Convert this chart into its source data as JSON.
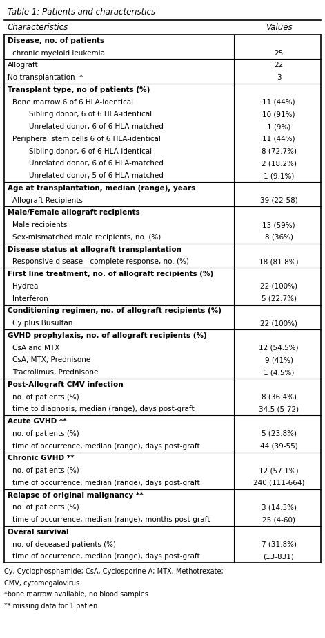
{
  "title": "Table 1: Patients and characteristics",
  "col1_header": "Characteristics",
  "col2_header": "Values",
  "rows": [
    {
      "text": "Disease, no. of patients",
      "value": "",
      "bold": true,
      "indent": 0,
      "section_start": true
    },
    {
      "text": "chronic myeloid leukemia",
      "value": "25",
      "bold": false,
      "indent": 1,
      "section_start": false
    },
    {
      "text": "Allograft",
      "value": "22",
      "bold": false,
      "indent": 0,
      "section_start": true
    },
    {
      "text": "No transplantation  *",
      "value": "3",
      "bold": false,
      "indent": 0,
      "section_start": false
    },
    {
      "text": "Transplant type, no of patients (%)",
      "value": "",
      "bold": true,
      "indent": 0,
      "section_start": true
    },
    {
      "text": "Bone marrow 6 of 6 HLA-identical",
      "value": "11 (44%)",
      "bold": false,
      "indent": 1,
      "section_start": false
    },
    {
      "text": "    Sibling donor, 6 of 6 HLA-identical",
      "value": "10 (91%)",
      "bold": false,
      "indent": 2,
      "section_start": false
    },
    {
      "text": "    Unrelated donor, 6 of 6 HLA-matched",
      "value": "1 (9%)",
      "bold": false,
      "indent": 2,
      "section_start": false
    },
    {
      "text": "Peripheral stem cells 6 of 6 HLA-identical",
      "value": "11 (44%)",
      "bold": false,
      "indent": 1,
      "section_start": false
    },
    {
      "text": "    Sibling donor, 6 of 6 HLA-identical",
      "value": "8 (72.7%)",
      "bold": false,
      "indent": 2,
      "section_start": false
    },
    {
      "text": "    Unrelated donor, 6 of 6 HLA-matched",
      "value": "2 (18.2%)",
      "bold": false,
      "indent": 2,
      "section_start": false
    },
    {
      "text": "    Unrelated donor, 5 of 6 HLA-matched",
      "value": "1 (9.1%)",
      "bold": false,
      "indent": 2,
      "section_start": false
    },
    {
      "text": "Age at transplantation, median (range), years",
      "value": "",
      "bold": true,
      "indent": 0,
      "section_start": true
    },
    {
      "text": "Allograft Recipients",
      "value": "39 (22-58)",
      "bold": false,
      "indent": 1,
      "section_start": false
    },
    {
      "text": "Male/Female allograft recipients",
      "value": "",
      "bold": true,
      "indent": 0,
      "section_start": true
    },
    {
      "text": "Male recipients",
      "value": "13 (59%)",
      "bold": false,
      "indent": 1,
      "section_start": false
    },
    {
      "text": "Sex-mismatched male recipients, no. (%)",
      "value": "8 (36%)",
      "bold": false,
      "indent": 1,
      "section_start": false
    },
    {
      "text": "Disease status at allograft transplantation",
      "value": "",
      "bold": true,
      "indent": 0,
      "section_start": true
    },
    {
      "text": "Responsive disease - complete response, no. (%)",
      "value": "18 (81.8%)",
      "bold": false,
      "indent": 1,
      "section_start": false
    },
    {
      "text": "First line treatment, no. of allograft recipients (%)",
      "value": "",
      "bold": true,
      "indent": 0,
      "section_start": true
    },
    {
      "text": "Hydrea",
      "value": "22 (100%)",
      "bold": false,
      "indent": 1,
      "section_start": false
    },
    {
      "text": "Interferon",
      "value": "5 (22.7%)",
      "bold": false,
      "indent": 1,
      "section_start": false
    },
    {
      "text": "Conditioning regimen, no. of allograft recipients (%)",
      "value": "",
      "bold": true,
      "indent": 0,
      "section_start": true
    },
    {
      "text": "Cy plus Busulfan",
      "value": "22 (100%)",
      "bold": false,
      "indent": 1,
      "section_start": false
    },
    {
      "text": "GVHD prophylaxis, no. of allograft recipients (%)",
      "value": "",
      "bold": true,
      "indent": 0,
      "section_start": true
    },
    {
      "text": "CsA and MTX",
      "value": "12 (54.5%)",
      "bold": false,
      "indent": 1,
      "section_start": false
    },
    {
      "text": "CsA, MTX, Prednisone",
      "value": "9 (41%)",
      "bold": false,
      "indent": 1,
      "section_start": false
    },
    {
      "text": "Tracrolimus, Prednisone",
      "value": "1 (4.5%)",
      "bold": false,
      "indent": 1,
      "section_start": false
    },
    {
      "text": "Post-Allograft CMV infection",
      "value": "",
      "bold": true,
      "indent": 0,
      "section_start": true
    },
    {
      "text": "no. of patients (%)",
      "value": "8 (36.4%)",
      "bold": false,
      "indent": 1,
      "section_start": false
    },
    {
      "text": "time to diagnosis, median (range), days post-graft",
      "value": "34.5 (5-72)",
      "bold": false,
      "indent": 1,
      "section_start": false
    },
    {
      "text": "Acute GVHD **",
      "value": "",
      "bold": true,
      "indent": 0,
      "section_start": true
    },
    {
      "text": "no. of patients (%)",
      "value": "5 (23.8%)",
      "bold": false,
      "indent": 1,
      "section_start": false
    },
    {
      "text": "time of occurrence, median (range), days post-graft",
      "value": "44 (39-55)",
      "bold": false,
      "indent": 1,
      "section_start": false
    },
    {
      "text": "Chronic GVHD **",
      "value": "",
      "bold": true,
      "indent": 0,
      "section_start": true
    },
    {
      "text": "no. of patients (%)",
      "value": "12 (57.1%)",
      "bold": false,
      "indent": 1,
      "section_start": false
    },
    {
      "text": "time of occurrence, median (range), days post-graft",
      "value": "240 (111-664)",
      "bold": false,
      "indent": 1,
      "section_start": false
    },
    {
      "text": "Relapse of original malignancy **",
      "value": "",
      "bold": true,
      "indent": 0,
      "section_start": true
    },
    {
      "text": "no. of patients (%)",
      "value": "3 (14.3%)",
      "bold": false,
      "indent": 1,
      "section_start": false
    },
    {
      "text": "time of occurrence, median (range), months post-graft",
      "value": "25 (4-60)",
      "bold": false,
      "indent": 1,
      "section_start": false
    },
    {
      "text": "Overal survival",
      "value": "",
      "bold": true,
      "indent": 0,
      "section_start": true
    },
    {
      "text": "no. of deceased patients (%)",
      "value": "7 (31.8%)",
      "bold": false,
      "indent": 1,
      "section_start": false
    },
    {
      "text": "time of occurrence, median (range), days post-graft",
      "value": "(13-831)",
      "bold": false,
      "indent": 1,
      "section_start": false
    }
  ],
  "footnotes": [
    "Cy, Cyclophosphamide; CsA, Cyclosporine A; MTX, Methotrexate;",
    "CMV, cytomegalovirus.",
    "*bone marrow available, no blood samples",
    "** missing data for 1 patien"
  ],
  "bg_color": "#ffffff",
  "text_color": "#000000",
  "line_color": "#000000",
  "font_size": 7.5,
  "header_font_size": 8.5,
  "col_split": 0.72
}
